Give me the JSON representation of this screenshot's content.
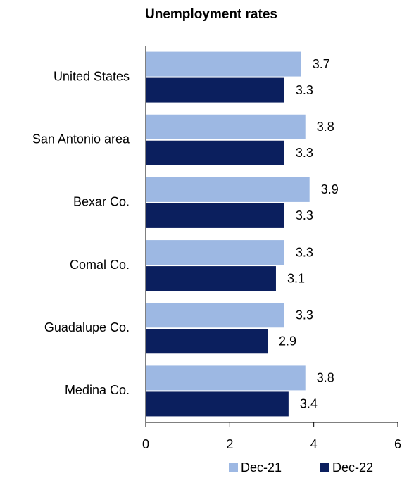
{
  "chart_data": {
    "type": "bar",
    "orientation": "horizontal",
    "title": "Unemployment rates",
    "categories": [
      "United States",
      "San Antonio area",
      "Bexar Co.",
      "Comal Co.",
      "Guadalupe Co.",
      "Medina Co."
    ],
    "series": [
      {
        "name": "Dec-21",
        "color": "#9db8e3",
        "values": [
          3.7,
          3.8,
          3.9,
          3.3,
          3.3,
          3.8
        ]
      },
      {
        "name": "Dec-22",
        "color": "#0b1f5e",
        "values": [
          3.3,
          3.3,
          3.3,
          3.1,
          2.9,
          3.4
        ]
      }
    ],
    "xlim": [
      0,
      6
    ],
    "xticks": [
      0,
      2,
      4,
      6
    ],
    "grid": false,
    "legend": "bottom"
  }
}
